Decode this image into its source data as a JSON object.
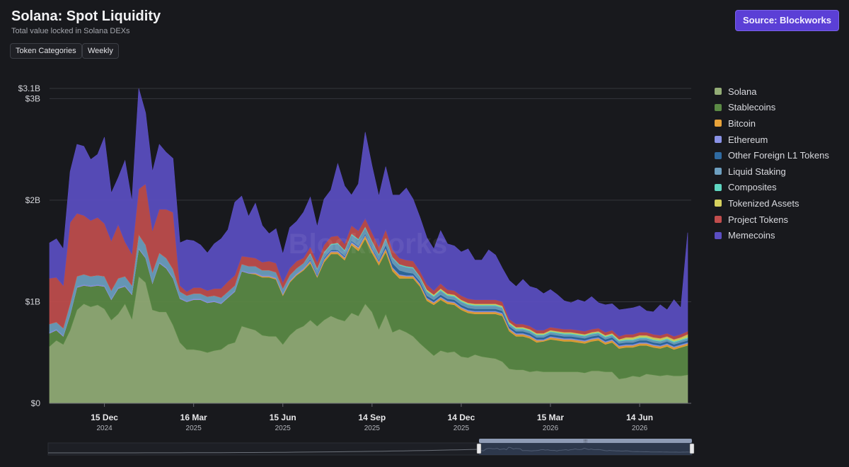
{
  "header": {
    "title": "Solana: Spot Liquidity",
    "subtitle": "Total value locked in Solana DEXs",
    "buttons": [
      "Token Categories",
      "Weekly"
    ],
    "source_label": "Source: Blockworks"
  },
  "watermark": "Blockworks",
  "chart_data": {
    "type": "area",
    "stacked": true,
    "x_axis": {
      "ticks": [
        {
          "day": "15 Dec",
          "year": "2024"
        },
        {
          "day": "16 Mar",
          "year": "2025"
        },
        {
          "day": "15 Jun",
          "year": "2025"
        },
        {
          "day": "14 Sep",
          "year": "2025"
        },
        {
          "day": "14 Dec",
          "year": "2025"
        },
        {
          "day": "15 Mar",
          "year": "2026"
        },
        {
          "day": "14 Jun",
          "year": "2026"
        }
      ]
    },
    "y_axis": {
      "ticks": [
        {
          "value": 0,
          "label": "$0"
        },
        {
          "value": 1,
          "label": "$1B"
        },
        {
          "value": 2,
          "label": "$2B"
        },
        {
          "value": 3,
          "label": "$3B"
        },
        {
          "value": 3.1,
          "label": "$3.1B"
        }
      ],
      "unit": "billion USD",
      "ylim": [
        0,
        3.1
      ]
    },
    "x": [
      "2024-10-20",
      "2024-10-27",
      "2024-11-03",
      "2024-11-10",
      "2024-11-17",
      "2024-11-24",
      "2024-12-01",
      "2024-12-08",
      "2024-12-15",
      "2024-12-22",
      "2024-12-29",
      "2025-01-05",
      "2025-01-12",
      "2025-01-19",
      "2025-01-26",
      "2025-02-02",
      "2025-02-09",
      "2025-02-16",
      "2025-02-23",
      "2025-03-02",
      "2025-03-09",
      "2025-03-16",
      "2025-03-23",
      "2025-03-30",
      "2025-04-06",
      "2025-04-13",
      "2025-04-20",
      "2025-04-27",
      "2025-05-04",
      "2025-05-11",
      "2025-05-18",
      "2025-05-25",
      "2025-06-01",
      "2025-06-08",
      "2025-06-15",
      "2025-06-22",
      "2025-06-29",
      "2025-07-06",
      "2025-07-13",
      "2025-07-20",
      "2025-07-27",
      "2025-08-03",
      "2025-08-10",
      "2025-08-17",
      "2025-08-24",
      "2025-08-31",
      "2025-09-07",
      "2025-09-14",
      "2025-09-21",
      "2025-09-28",
      "2025-10-05",
      "2025-10-12",
      "2025-10-19",
      "2025-10-26",
      "2025-11-02",
      "2025-11-09",
      "2025-11-16",
      "2025-11-23",
      "2025-11-30",
      "2025-12-07",
      "2025-12-14",
      "2025-12-21",
      "2025-12-28",
      "2026-01-04",
      "2026-01-11",
      "2026-01-18",
      "2026-01-25",
      "2026-02-01",
      "2026-02-08",
      "2026-02-15",
      "2026-02-22",
      "2026-03-01",
      "2026-03-08",
      "2026-03-15",
      "2026-03-22",
      "2026-03-29",
      "2026-04-05",
      "2026-04-12",
      "2026-04-19",
      "2026-04-26",
      "2026-05-03",
      "2026-05-10",
      "2026-05-17",
      "2026-05-24",
      "2026-05-31",
      "2026-06-07",
      "2026-06-14",
      "2026-06-21",
      "2026-06-28",
      "2026-07-05",
      "2026-07-12",
      "2026-07-19",
      "2026-07-26",
      "2026-08-02"
    ],
    "series": [
      {
        "name": "Solana",
        "color": "#93ac76",
        "values": [
          0.56,
          0.62,
          0.58,
          0.72,
          0.92,
          0.98,
          0.95,
          0.97,
          0.93,
          0.82,
          0.88,
          0.98,
          0.83,
          1.25,
          1.19,
          0.92,
          0.9,
          0.9,
          0.77,
          0.6,
          0.53,
          0.53,
          0.52,
          0.5,
          0.52,
          0.53,
          0.58,
          0.6,
          0.76,
          0.74,
          0.72,
          0.67,
          0.66,
          0.66,
          0.58,
          0.67,
          0.73,
          0.76,
          0.82,
          0.76,
          0.82,
          0.86,
          0.83,
          0.81,
          0.89,
          0.86,
          0.98,
          0.9,
          0.73,
          0.88,
          0.7,
          0.73,
          0.7,
          0.66,
          0.59,
          0.53,
          0.47,
          0.52,
          0.5,
          0.51,
          0.46,
          0.45,
          0.48,
          0.46,
          0.45,
          0.44,
          0.41,
          0.34,
          0.33,
          0.33,
          0.31,
          0.32,
          0.31,
          0.31,
          0.31,
          0.31,
          0.31,
          0.31,
          0.3,
          0.32,
          0.32,
          0.31,
          0.31,
          0.24,
          0.25,
          0.27,
          0.26,
          0.29,
          0.28,
          0.27,
          0.28,
          0.27,
          0.27,
          0.28
        ]
      },
      {
        "name": "Stablecoins",
        "color": "#5b8a45",
        "values": [
          0.13,
          0.1,
          0.08,
          0.15,
          0.22,
          0.18,
          0.2,
          0.19,
          0.22,
          0.2,
          0.25,
          0.17,
          0.24,
          0.27,
          0.24,
          0.26,
          0.48,
          0.43,
          0.46,
          0.43,
          0.47,
          0.49,
          0.5,
          0.49,
          0.48,
          0.45,
          0.46,
          0.5,
          0.54,
          0.54,
          0.55,
          0.57,
          0.58,
          0.56,
          0.48,
          0.52,
          0.53,
          0.55,
          0.56,
          0.48,
          0.57,
          0.61,
          0.64,
          0.6,
          0.67,
          0.64,
          0.64,
          0.58,
          0.63,
          0.61,
          0.6,
          0.5,
          0.53,
          0.57,
          0.56,
          0.48,
          0.5,
          0.5,
          0.48,
          0.46,
          0.46,
          0.44,
          0.4,
          0.42,
          0.43,
          0.44,
          0.45,
          0.37,
          0.33,
          0.33,
          0.33,
          0.28,
          0.3,
          0.32,
          0.31,
          0.3,
          0.3,
          0.29,
          0.29,
          0.29,
          0.3,
          0.27,
          0.29,
          0.3,
          0.3,
          0.28,
          0.31,
          0.28,
          0.27,
          0.27,
          0.28,
          0.26,
          0.28,
          0.29
        ]
      },
      {
        "name": "Bitcoin",
        "color": "#e8a33a",
        "values": [
          0.0,
          0.0,
          0.0,
          0.0,
          0.0,
          0.0,
          0.0,
          0.0,
          0.0,
          0.0,
          0.0,
          0.0,
          0.0,
          0.0,
          0.0,
          0.0,
          0.0,
          0.0,
          0.0,
          0.0,
          0.0,
          0.0,
          0.0,
          0.0,
          0.0,
          0.0,
          0.0,
          0.0,
          0.0,
          0.0,
          0.01,
          0.01,
          0.01,
          0.01,
          0.01,
          0.01,
          0.01,
          0.01,
          0.02,
          0.01,
          0.02,
          0.02,
          0.02,
          0.02,
          0.02,
          0.03,
          0.03,
          0.03,
          0.03,
          0.03,
          0.03,
          0.03,
          0.02,
          0.02,
          0.02,
          0.02,
          0.02,
          0.02,
          0.02,
          0.02,
          0.02,
          0.02,
          0.02,
          0.02,
          0.02,
          0.02,
          0.02,
          0.02,
          0.02,
          0.02,
          0.02,
          0.02,
          0.01,
          0.02,
          0.02,
          0.02,
          0.02,
          0.02,
          0.02,
          0.02,
          0.02,
          0.02,
          0.02,
          0.02,
          0.02,
          0.02,
          0.02,
          0.02,
          0.02,
          0.02,
          0.02,
          0.02,
          0.02,
          0.02
        ]
      },
      {
        "name": "Ethereum",
        "color": "#8a92e6",
        "values": [
          0.01,
          0.01,
          0.01,
          0.01,
          0.01,
          0.01,
          0.01,
          0.01,
          0.01,
          0.01,
          0.01,
          0.01,
          0.01,
          0.01,
          0.01,
          0.01,
          0.01,
          0.01,
          0.01,
          0.01,
          0.01,
          0.01,
          0.01,
          0.01,
          0.01,
          0.01,
          0.01,
          0.01,
          0.01,
          0.01,
          0.01,
          0.01,
          0.01,
          0.01,
          0.01,
          0.01,
          0.01,
          0.01,
          0.01,
          0.01,
          0.01,
          0.01,
          0.01,
          0.01,
          0.01,
          0.01,
          0.01,
          0.01,
          0.01,
          0.01,
          0.01,
          0.01,
          0.01,
          0.01,
          0.01,
          0.01,
          0.01,
          0.01,
          0.01,
          0.01,
          0.01,
          0.01,
          0.01,
          0.01,
          0.01,
          0.01,
          0.01,
          0.01,
          0.01,
          0.01,
          0.01,
          0.01,
          0.01,
          0.01,
          0.01,
          0.01,
          0.01,
          0.01,
          0.01,
          0.01,
          0.01,
          0.01,
          0.01,
          0.01,
          0.01,
          0.01,
          0.01,
          0.01,
          0.01,
          0.01,
          0.01,
          0.01,
          0.01,
          0.01
        ]
      },
      {
        "name": "Other Foreign L1 Tokens",
        "color": "#2f6aa1",
        "values": [
          0.0,
          0.0,
          0.0,
          0.0,
          0.0,
          0.0,
          0.0,
          0.0,
          0.0,
          0.0,
          0.0,
          0.0,
          0.0,
          0.0,
          0.0,
          0.0,
          0.0,
          0.0,
          0.0,
          0.0,
          0.0,
          0.0,
          0.0,
          0.0,
          0.0,
          0.0,
          0.0,
          0.0,
          0.0,
          0.0,
          0.0,
          0.0,
          0.0,
          0.0,
          0.0,
          0.0,
          0.0,
          0.0,
          0.01,
          0.01,
          0.01,
          0.01,
          0.01,
          0.01,
          0.01,
          0.01,
          0.01,
          0.01,
          0.01,
          0.03,
          0.04,
          0.04,
          0.03,
          0.02,
          0.02,
          0.02,
          0.02,
          0.02,
          0.02,
          0.02,
          0.02,
          0.02,
          0.02,
          0.02,
          0.02,
          0.02,
          0.02,
          0.02,
          0.02,
          0.02,
          0.02,
          0.02,
          0.02,
          0.02,
          0.02,
          0.02,
          0.02,
          0.02,
          0.02,
          0.02,
          0.02,
          0.02,
          0.02,
          0.02,
          0.02,
          0.02,
          0.02,
          0.02,
          0.02,
          0.02,
          0.02,
          0.02,
          0.02,
          0.02
        ]
      },
      {
        "name": "Liquid Staking",
        "color": "#6d9fc0",
        "values": [
          0.08,
          0.07,
          0.07,
          0.1,
          0.1,
          0.1,
          0.09,
          0.09,
          0.09,
          0.08,
          0.09,
          0.09,
          0.08,
          0.13,
          0.12,
          0.1,
          0.09,
          0.09,
          0.08,
          0.06,
          0.05,
          0.05,
          0.05,
          0.05,
          0.05,
          0.05,
          0.05,
          0.05,
          0.06,
          0.06,
          0.06,
          0.05,
          0.05,
          0.05,
          0.05,
          0.05,
          0.05,
          0.05,
          0.05,
          0.05,
          0.05,
          0.05,
          0.06,
          0.05,
          0.06,
          0.06,
          0.06,
          0.06,
          0.05,
          0.06,
          0.05,
          0.05,
          0.05,
          0.05,
          0.04,
          0.04,
          0.03,
          0.04,
          0.03,
          0.03,
          0.03,
          0.03,
          0.03,
          0.03,
          0.03,
          0.03,
          0.03,
          0.02,
          0.02,
          0.02,
          0.02,
          0.02,
          0.02,
          0.02,
          0.02,
          0.02,
          0.02,
          0.02,
          0.02,
          0.02,
          0.02,
          0.02,
          0.02,
          0.02,
          0.02,
          0.02,
          0.02,
          0.02,
          0.02,
          0.02,
          0.02,
          0.02,
          0.02,
          0.02
        ]
      },
      {
        "name": "Composites",
        "color": "#5fd6c1",
        "values": [
          0.0,
          0.0,
          0.0,
          0.0,
          0.0,
          0.0,
          0.0,
          0.0,
          0.0,
          0.0,
          0.0,
          0.0,
          0.0,
          0.0,
          0.0,
          0.0,
          0.0,
          0.0,
          0.0,
          0.0,
          0.0,
          0.0,
          0.0,
          0.0,
          0.0,
          0.0,
          0.0,
          0.0,
          0.0,
          0.0,
          0.0,
          0.0,
          0.0,
          0.0,
          0.0,
          0.0,
          0.0,
          0.0,
          0.01,
          0.01,
          0.01,
          0.01,
          0.01,
          0.01,
          0.01,
          0.01,
          0.01,
          0.01,
          0.01,
          0.01,
          0.01,
          0.01,
          0.01,
          0.01,
          0.01,
          0.01,
          0.01,
          0.01,
          0.01,
          0.01,
          0.01,
          0.01,
          0.01,
          0.01,
          0.01,
          0.01,
          0.01,
          0.01,
          0.01,
          0.01,
          0.01,
          0.01,
          0.01,
          0.01,
          0.01,
          0.01,
          0.01,
          0.01,
          0.01,
          0.01,
          0.01,
          0.01,
          0.01,
          0.01,
          0.01,
          0.01,
          0.01,
          0.01,
          0.01,
          0.01,
          0.01,
          0.01,
          0.01,
          0.01
        ]
      },
      {
        "name": "Tokenized Assets",
        "color": "#d6d15e",
        "values": [
          0.0,
          0.0,
          0.0,
          0.0,
          0.0,
          0.0,
          0.0,
          0.0,
          0.0,
          0.0,
          0.0,
          0.0,
          0.0,
          0.0,
          0.0,
          0.0,
          0.0,
          0.0,
          0.0,
          0.0,
          0.0,
          0.0,
          0.0,
          0.0,
          0.0,
          0.0,
          0.0,
          0.0,
          0.0,
          0.0,
          0.0,
          0.0,
          0.0,
          0.0,
          0.0,
          0.0,
          0.0,
          0.0,
          0.0,
          0.0,
          0.0,
          0.0,
          0.0,
          0.0,
          0.0,
          0.0,
          0.0,
          0.0,
          0.0,
          0.0,
          0.0,
          0.0,
          0.0,
          0.0,
          0.0,
          0.01,
          0.01,
          0.01,
          0.01,
          0.01,
          0.01,
          0.01,
          0.01,
          0.01,
          0.01,
          0.01,
          0.01,
          0.01,
          0.01,
          0.01,
          0.01,
          0.01,
          0.01,
          0.01,
          0.01,
          0.01,
          0.01,
          0.01,
          0.01,
          0.01,
          0.01,
          0.01,
          0.01,
          0.01,
          0.02,
          0.02,
          0.02,
          0.02,
          0.02,
          0.02,
          0.02,
          0.02,
          0.02,
          0.03
        ]
      },
      {
        "name": "Project Tokens",
        "color": "#c14d4d",
        "values": [
          0.45,
          0.44,
          0.42,
          0.8,
          0.62,
          0.58,
          0.55,
          0.57,
          0.52,
          0.49,
          0.53,
          0.34,
          0.31,
          0.45,
          0.6,
          0.41,
          0.43,
          0.48,
          0.56,
          0.06,
          0.04,
          0.06,
          0.06,
          0.06,
          0.07,
          0.09,
          0.1,
          0.1,
          0.08,
          0.09,
          0.08,
          0.08,
          0.09,
          0.09,
          0.06,
          0.07,
          0.07,
          0.05,
          0.06,
          0.06,
          0.07,
          0.07,
          0.07,
          0.06,
          0.08,
          0.08,
          0.08,
          0.08,
          0.07,
          0.08,
          0.07,
          0.06,
          0.06,
          0.06,
          0.05,
          0.05,
          0.04,
          0.05,
          0.04,
          0.04,
          0.04,
          0.04,
          0.04,
          0.04,
          0.04,
          0.04,
          0.04,
          0.03,
          0.03,
          0.03,
          0.03,
          0.03,
          0.03,
          0.03,
          0.03,
          0.03,
          0.03,
          0.03,
          0.03,
          0.03,
          0.03,
          0.03,
          0.03,
          0.03,
          0.03,
          0.03,
          0.03,
          0.03,
          0.03,
          0.03,
          0.03,
          0.03,
          0.03,
          0.03
        ]
      },
      {
        "name": "Memecoins",
        "color": "#5b4ec2",
        "values": [
          0.35,
          0.38,
          0.36,
          0.5,
          0.68,
          0.68,
          0.6,
          0.62,
          0.85,
          0.47,
          0.46,
          0.8,
          0.52,
          0.99,
          0.7,
          0.58,
          0.64,
          0.56,
          0.53,
          0.42,
          0.51,
          0.46,
          0.42,
          0.37,
          0.44,
          0.49,
          0.51,
          0.72,
          0.59,
          0.4,
          0.54,
          0.36,
          0.27,
          0.34,
          0.28,
          0.4,
          0.39,
          0.45,
          0.49,
          0.35,
          0.45,
          0.46,
          0.71,
          0.57,
          0.3,
          0.46,
          0.85,
          0.66,
          0.5,
          0.62,
          0.54,
          0.62,
          0.71,
          0.61,
          0.53,
          0.46,
          0.41,
          0.52,
          0.45,
          0.44,
          0.43,
          0.49,
          0.39,
          0.39,
          0.49,
          0.44,
          0.33,
          0.38,
          0.37,
          0.44,
          0.39,
          0.41,
          0.36,
          0.37,
          0.33,
          0.28,
          0.26,
          0.3,
          0.29,
          0.32,
          0.25,
          0.27,
          0.26,
          0.26,
          0.25,
          0.26,
          0.26,
          0.21,
          0.22,
          0.3,
          0.23,
          0.36,
          0.26,
          0.97
        ]
      }
    ],
    "legend": {
      "position": "right"
    },
    "grid": true
  }
}
